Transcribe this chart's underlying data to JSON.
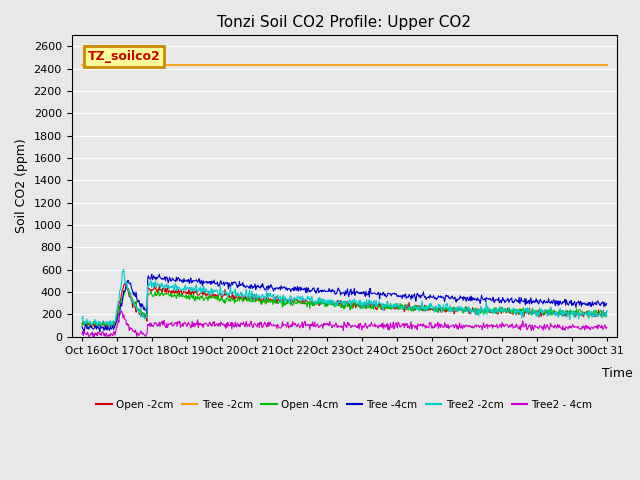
{
  "title": "Tonzi Soil CO2 Profile: Upper CO2",
  "ylabel": "Soil CO2 (ppm)",
  "xlabel": "Time",
  "ylim": [
    0,
    2700
  ],
  "yticks": [
    0,
    200,
    400,
    600,
    800,
    1000,
    1200,
    1400,
    1600,
    1800,
    2000,
    2200,
    2400,
    2600
  ],
  "xtick_labels": [
    "Oct 16",
    "Oct 17",
    "Oct 18",
    "Oct 19",
    "Oct 20",
    "Oct 21",
    "Oct 22",
    "Oct 23",
    "Oct 24",
    "Oct 25",
    "Oct 26",
    "Oct 27",
    "Oct 28",
    "Oct 29",
    "Oct 30",
    "Oct 31"
  ],
  "background_color": "#e8e8e8",
  "plot_bg_color": "#e8e8e8",
  "legend_label": "TZ_soilco2",
  "legend_facecolor": "#ffff99",
  "legend_edgecolor": "#cc8800",
  "series_colors": {
    "Open -2cm": "#cc0000",
    "Tree -2cm": "#ff9900",
    "Open -4cm": "#00bb00",
    "Tree -4cm": "#0000cc",
    "Tree2 -2cm": "#00cccc",
    "Tree2 - 4cm": "#cc00cc"
  },
  "tree_2cm_value": 2430
}
